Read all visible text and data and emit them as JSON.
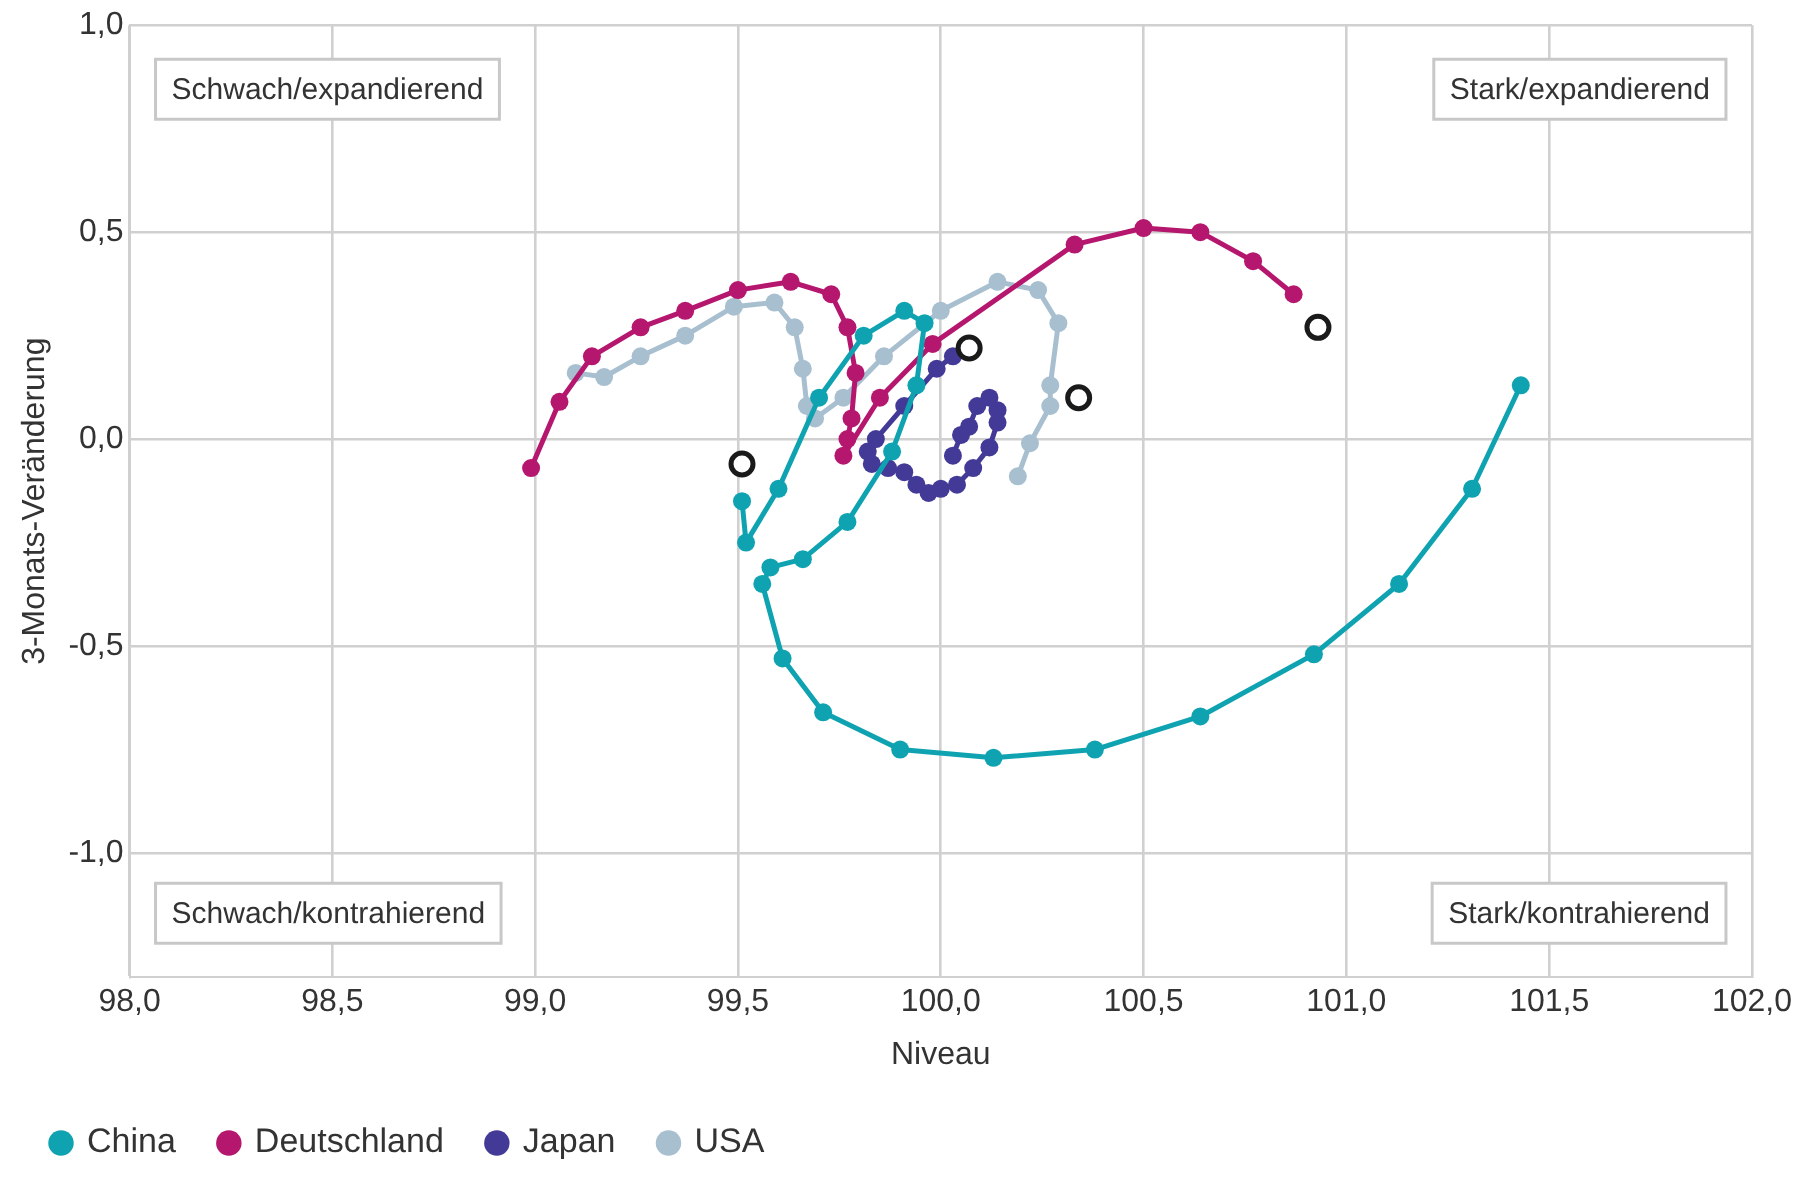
{
  "chart_data": {
    "type": "line",
    "xlabel": "Niveau",
    "ylabel": "3-Monats-Veränderung",
    "xlim": [
      98,
      102
    ],
    "ylim": [
      -1.3,
      1.0
    ],
    "xticks": [
      {
        "value": 98,
        "label": "98,0"
      },
      {
        "value": 98.5,
        "label": "98,5"
      },
      {
        "value": 99,
        "label": "99,0"
      },
      {
        "value": 99.5,
        "label": "99,5"
      },
      {
        "value": 100,
        "label": "100,0"
      },
      {
        "value": 100.5,
        "label": "100,5"
      },
      {
        "value": 101,
        "label": "101,0"
      },
      {
        "value": 101.5,
        "label": "101,5"
      },
      {
        "value": 102,
        "label": "102,0"
      }
    ],
    "yticks": [
      {
        "value": -1,
        "label": "-1,0"
      },
      {
        "value": -0.5,
        "label": "-0,5"
      },
      {
        "value": 0,
        "label": "0,0"
      },
      {
        "value": 0.5,
        "label": "0,5"
      },
      {
        "value": 1,
        "label": "1,0"
      }
    ],
    "grid": true,
    "legend": "bottom left",
    "marker": "circle",
    "line_style": "solid",
    "annotations": [
      "Schwach/expandierend",
      "Stark/expandierend",
      "Schwach/kontrahierend",
      "Stark/kontrahierend"
    ],
    "series": [
      {
        "name": "China",
        "color": "#0fa3b1",
        "x": [
          101.43,
          101.31,
          101.13,
          100.92,
          100.64,
          100.38,
          100.13,
          99.9,
          99.71,
          99.61,
          99.56,
          99.58,
          99.66,
          99.77,
          99.88,
          99.94,
          99.96,
          99.91,
          99.81,
          99.7,
          99.6,
          99.52,
          99.51
        ],
        "values": [
          0.13,
          -0.12,
          -0.35,
          -0.52,
          -0.67,
          -0.75,
          -0.77,
          -0.75,
          -0.66,
          -0.53,
          -0.35,
          -0.31,
          -0.29,
          -0.2,
          -0.03,
          0.13,
          0.28,
          0.31,
          0.25,
          0.1,
          -0.12,
          -0.25,
          -0.15
        ]
      },
      {
        "name": "Deutschland",
        "color": "#b5176e",
        "x": [
          98.99,
          99.06,
          99.14,
          99.26,
          99.37,
          99.5,
          99.63,
          99.73,
          99.77,
          99.79,
          99.78,
          99.77,
          99.76,
          99.85,
          99.98,
          100.33,
          100.5,
          100.64,
          100.77,
          100.87
        ],
        "values": [
          -0.07,
          0.09,
          0.2,
          0.27,
          0.31,
          0.36,
          0.38,
          0.35,
          0.27,
          0.16,
          0.05,
          0.0,
          -0.04,
          0.1,
          0.23,
          0.47,
          0.51,
          0.5,
          0.43,
          0.35
        ]
      },
      {
        "name": "Japan",
        "color": "#433a98",
        "x": [
          100.03,
          100.05,
          100.07,
          100.09,
          100.12,
          100.14,
          100.14,
          100.12,
          100.08,
          100.04,
          100.0,
          99.97,
          99.94,
          99.91,
          99.87,
          99.83,
          99.82,
          99.84,
          99.91,
          99.99,
          100.03
        ],
        "values": [
          -0.04,
          0.01,
          0.03,
          0.08,
          0.1,
          0.07,
          0.04,
          -0.02,
          -0.07,
          -0.11,
          -0.12,
          -0.13,
          -0.11,
          -0.08,
          -0.07,
          -0.06,
          -0.03,
          0.0,
          0.08,
          0.17,
          0.2
        ]
      },
      {
        "name": "USA",
        "color": "#a8bfd0",
        "x": [
          99.1,
          99.17,
          99.26,
          99.37,
          99.49,
          99.59,
          99.64,
          99.66,
          99.67,
          99.69,
          99.76,
          99.86,
          100.0,
          100.14,
          100.24,
          100.29,
          100.27,
          100.27,
          100.22,
          100.19
        ],
        "values": [
          0.16,
          0.15,
          0.2,
          0.25,
          0.32,
          0.33,
          0.27,
          0.17,
          0.08,
          0.05,
          0.1,
          0.2,
          0.31,
          0.38,
          0.36,
          0.28,
          0.13,
          0.08,
          -0.01,
          -0.09
        ]
      },
      {
        "type": "scatter",
        "color": "#1a1a1a",
        "x": [
          99.51,
          100.93,
          100.07,
          100.34
        ],
        "values": [
          -0.06,
          0.27,
          0.22,
          0.1
        ]
      }
    ]
  }
}
